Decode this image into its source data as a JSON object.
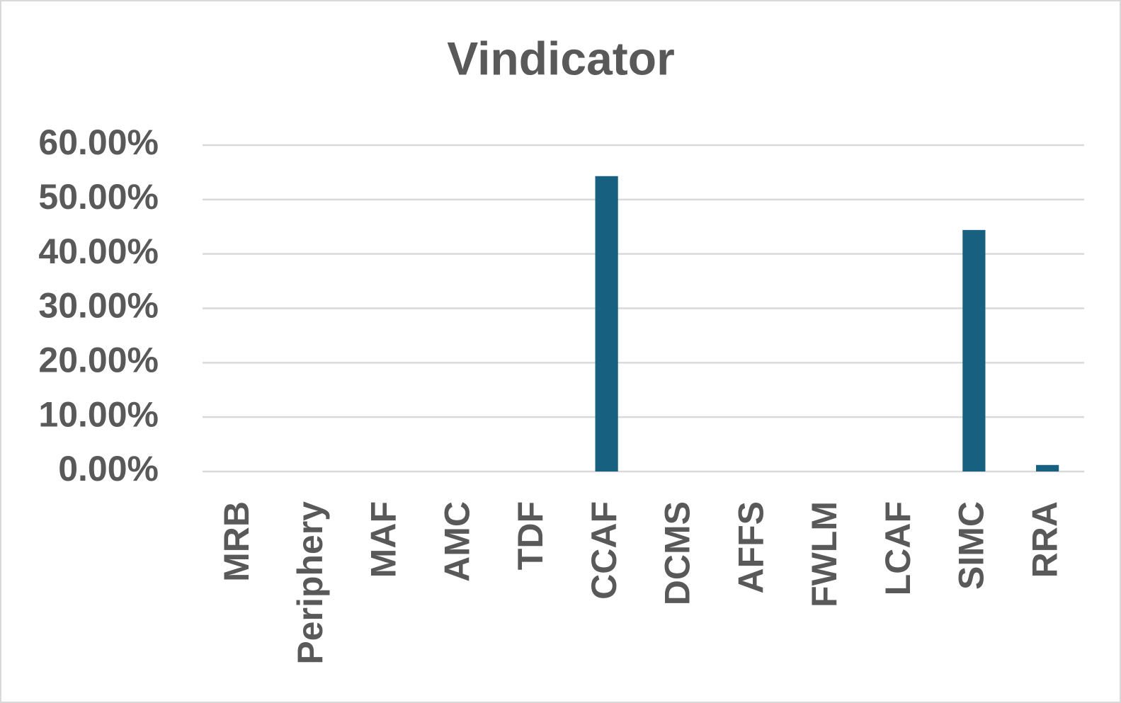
{
  "chart_data": {
    "type": "bar",
    "title": "Vindicator",
    "categories": [
      "MRB",
      "Periphery",
      "MAF",
      "AMC",
      "TDF",
      "CCAF",
      "DCMS",
      "AFFS",
      "FWLM",
      "LCAF",
      "SIMC",
      "RRA"
    ],
    "values": [
      0,
      0,
      0,
      0,
      0,
      54.3,
      0,
      0,
      0,
      0,
      44.4,
      1.2
    ],
    "color": "#17607f",
    "ylim": [
      0,
      60
    ],
    "yticks": [
      {
        "value": 0,
        "label": "0.00%"
      },
      {
        "value": 10,
        "label": "10.00%"
      },
      {
        "value": 20,
        "label": "20.00%"
      },
      {
        "value": 30,
        "label": "30.00%"
      },
      {
        "value": 40,
        "label": "40.00%"
      },
      {
        "value": 50,
        "label": "50.00%"
      },
      {
        "value": 60,
        "label": "60.00%"
      }
    ],
    "grid": true
  }
}
